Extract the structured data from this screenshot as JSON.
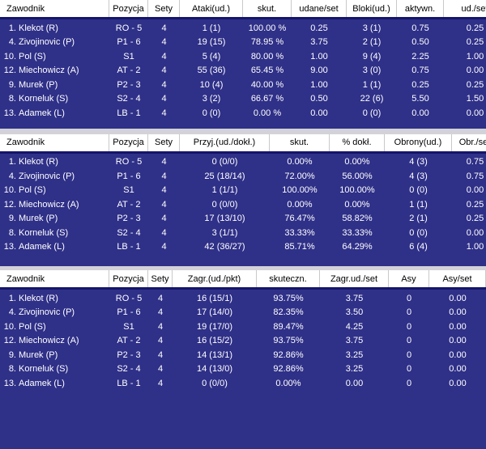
{
  "colors": {
    "navy": "#2f3088",
    "header_bg": "#ffffff",
    "header_text": "#000000",
    "header_underline": "#15156b",
    "column_separator": "#c9c9c9",
    "row_text": "#ffffff",
    "table_gap": "#d2d2d8"
  },
  "tables": [
    {
      "name": "attack-block-stats",
      "columns": [
        "Zawodnik",
        "Pozycja",
        "Sety",
        "Ataki(ud.)",
        "skut.",
        "udane/set",
        "Bloki(ud.)",
        "aktywn.",
        "ud./set"
      ],
      "rows": [
        {
          "num": "1.",
          "name": "Klekot (R)",
          "cells": [
            "RO - 5",
            "4",
            "1 (1)",
            "100.00 %",
            "0.25",
            "3 (1)",
            "0.75",
            "0.25"
          ]
        },
        {
          "num": "4.",
          "name": "Zivojinovic (P)",
          "cells": [
            "P1 - 6",
            "4",
            "19 (15)",
            "78.95 %",
            "3.75",
            "2 (1)",
            "0.50",
            "0.25"
          ]
        },
        {
          "num": "10.",
          "name": "Pol (S)",
          "cells": [
            "S1",
            "4",
            "5 (4)",
            "80.00 %",
            "1.00",
            "9 (4)",
            "2.25",
            "1.00"
          ]
        },
        {
          "num": "12.",
          "name": "Miechowicz (A)",
          "cells": [
            "AT - 2",
            "4",
            "55 (36)",
            "65.45 %",
            "9.00",
            "3 (0)",
            "0.75",
            "0.00"
          ]
        },
        {
          "num": "9.",
          "name": "Murek (P)",
          "cells": [
            "P2 - 3",
            "4",
            "10 (4)",
            "40.00 %",
            "1.00",
            "1 (1)",
            "0.25",
            "0.25"
          ]
        },
        {
          "num": "8.",
          "name": "Korneluk (S)",
          "cells": [
            "S2 - 4",
            "4",
            "3 (2)",
            "66.67 %",
            "0.50",
            "22 (6)",
            "5.50",
            "1.50"
          ]
        },
        {
          "num": "13.",
          "name": "Adamek (L)",
          "cells": [
            "LB - 1",
            "4",
            "0 (0)",
            "0.00 %",
            "0.00",
            "0 (0)",
            "0.00",
            "0.00"
          ]
        }
      ]
    },
    {
      "name": "reception-defense-stats",
      "columns": [
        "Zawodnik",
        "Pozycja",
        "Sety",
        "Przyj.(ud./dokł.)",
        "skut.",
        "% dokł.",
        "Obrony(ud.)",
        "Obr./set"
      ],
      "rows": [
        {
          "num": "1.",
          "name": "Klekot (R)",
          "cells": [
            "RO - 5",
            "4",
            "0 (0/0)",
            "0.00%",
            "0.00%",
            "4 (3)",
            "0.75"
          ]
        },
        {
          "num": "4.",
          "name": "Zivojinovic (P)",
          "cells": [
            "P1 - 6",
            "4",
            "25 (18/14)",
            "72.00%",
            "56.00%",
            "4 (3)",
            "0.75"
          ]
        },
        {
          "num": "10.",
          "name": "Pol (S)",
          "cells": [
            "S1",
            "4",
            "1 (1/1)",
            "100.00%",
            "100.00%",
            "0 (0)",
            "0.00"
          ]
        },
        {
          "num": "12.",
          "name": "Miechowicz (A)",
          "cells": [
            "AT - 2",
            "4",
            "0 (0/0)",
            "0.00%",
            "0.00%",
            "1 (1)",
            "0.25"
          ]
        },
        {
          "num": "9.",
          "name": "Murek (P)",
          "cells": [
            "P2 - 3",
            "4",
            "17 (13/10)",
            "76.47%",
            "58.82%",
            "2 (1)",
            "0.25"
          ]
        },
        {
          "num": "8.",
          "name": "Korneluk (S)",
          "cells": [
            "S2 - 4",
            "4",
            "3 (1/1)",
            "33.33%",
            "33.33%",
            "0 (0)",
            "0.00"
          ]
        },
        {
          "num": "13.",
          "name": "Adamek (L)",
          "cells": [
            "LB - 1",
            "4",
            "42 (36/27)",
            "85.71%",
            "64.29%",
            "6 (4)",
            "1.00"
          ]
        }
      ]
    },
    {
      "name": "serve-stats",
      "columns": [
        "Zawodnik",
        "Pozycja",
        "Sety",
        "Zagr.(ud./pkt)",
        "skuteczn.",
        "Zagr.ud./set",
        "Asy",
        "Asy/set"
      ],
      "rows": [
        {
          "num": "1.",
          "name": "Klekot (R)",
          "cells": [
            "RO - 5",
            "4",
            "16 (15/1)",
            "93.75%",
            "3.75",
            "0",
            "0.00"
          ]
        },
        {
          "num": "4.",
          "name": "Zivojinovic (P)",
          "cells": [
            "P1 - 6",
            "4",
            "17 (14/0)",
            "82.35%",
            "3.50",
            "0",
            "0.00"
          ]
        },
        {
          "num": "10.",
          "name": "Pol (S)",
          "cells": [
            "S1",
            "4",
            "19 (17/0)",
            "89.47%",
            "4.25",
            "0",
            "0.00"
          ]
        },
        {
          "num": "12.",
          "name": "Miechowicz (A)",
          "cells": [
            "AT - 2",
            "4",
            "16 (15/2)",
            "93.75%",
            "3.75",
            "0",
            "0.00"
          ]
        },
        {
          "num": "9.",
          "name": "Murek (P)",
          "cells": [
            "P2 - 3",
            "4",
            "14 (13/1)",
            "92.86%",
            "3.25",
            "0",
            "0.00"
          ]
        },
        {
          "num": "8.",
          "name": "Korneluk (S)",
          "cells": [
            "S2 - 4",
            "4",
            "14 (13/0)",
            "92.86%",
            "3.25",
            "0",
            "0.00"
          ]
        },
        {
          "num": "13.",
          "name": "Adamek (L)",
          "cells": [
            "LB - 1",
            "4",
            "0 (0/0)",
            "0.00%",
            "0.00",
            "0",
            "0.00"
          ]
        }
      ]
    }
  ]
}
